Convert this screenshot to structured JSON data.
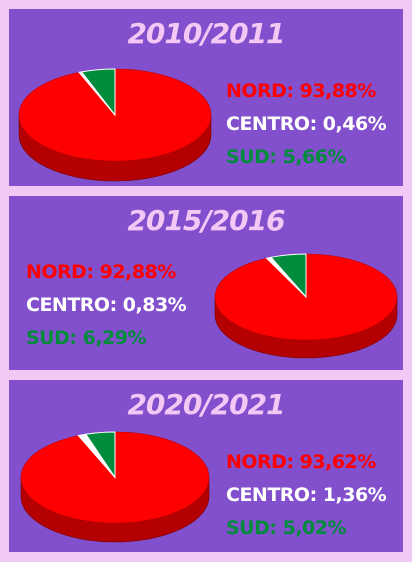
{
  "colors": {
    "nord": "#ff0000",
    "centro": "#ffffff",
    "sud": "#008c3c"
  },
  "chart_data": [
    {
      "type": "pie",
      "title": "2010/2011",
      "slices": [
        {
          "name": "NORD",
          "value": 93.88,
          "label": "NORD: 93,88%"
        },
        {
          "name": "CENTRO",
          "value": 0.46,
          "label": "CENTRO: 0,46%"
        },
        {
          "name": "SUD",
          "value": 5.66,
          "label": "SUD: 5,66%"
        }
      ]
    },
    {
      "type": "pie",
      "title": "2015/2016",
      "slices": [
        {
          "name": "NORD",
          "value": 92.88,
          "label": "NORD: 92,88%"
        },
        {
          "name": "CENTRO",
          "value": 0.83,
          "label": "CENTRO: 0,83%"
        },
        {
          "name": "SUD",
          "value": 6.29,
          "label": "SUD: 6,29%"
        }
      ]
    },
    {
      "type": "pie",
      "title": "2020/2021",
      "slices": [
        {
          "name": "NORD",
          "value": 93.62,
          "label": "NORD: 93,62%"
        },
        {
          "name": "CENTRO",
          "value": 1.36,
          "label": "CENTRO: 1,36%"
        },
        {
          "name": "SUD",
          "value": 5.02,
          "label": "SUD: 5,02%"
        }
      ]
    }
  ]
}
